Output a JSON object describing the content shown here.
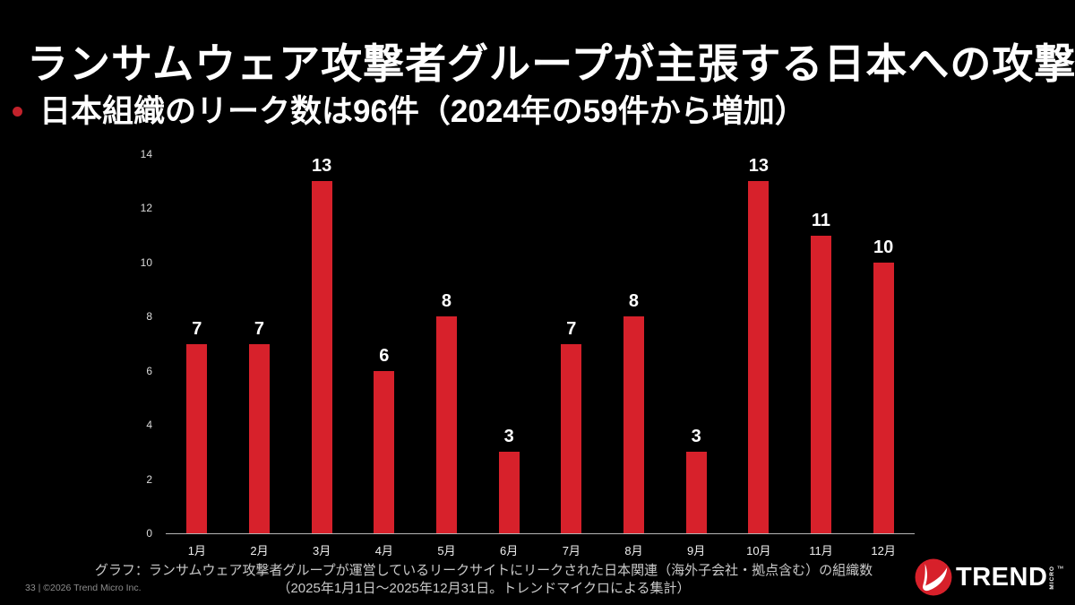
{
  "title": "ランサムウェア攻撃者グループが主張する日本への攻撃",
  "bullet": "日本組織のリーク数は96件（2024年の59件から増加）",
  "caption": {
    "line1": "グラフ：ランサムウェア攻撃者グループが運営しているリークサイトにリークされた日本関連（海外子会社・拠点含む）の組織数",
    "line2": "（2025年1月1日～2025年12月31日。トレンドマイクロによる集計）"
  },
  "footer": "33 | ©2026 Trend Micro Inc.",
  "logo": {
    "trend": "TREND",
    "micro": "MICRO",
    "tm": "™"
  },
  "colors": {
    "background": "#000000",
    "bar_red": "#d7212b",
    "bullet_red": "#c2222b",
    "text": "#ffffff",
    "caption_gray": "#c9c9c9"
  },
  "chart_data": {
    "type": "bar",
    "title": "ランサムウェア攻撃者グループが主張する日本への攻撃",
    "categories": [
      "1月",
      "2月",
      "3月",
      "4月",
      "5月",
      "6月",
      "7月",
      "8月",
      "9月",
      "10月",
      "11月",
      "12月"
    ],
    "values": [
      7,
      7,
      13,
      6,
      8,
      3,
      7,
      8,
      3,
      13,
      11,
      10
    ],
    "xlabel": "",
    "ylabel": "",
    "ylim": [
      0,
      14
    ],
    "yticks": [
      0,
      2,
      4,
      6,
      8,
      10,
      12,
      14
    ],
    "bar_color": "#d7212b",
    "grid": false,
    "legend": "none",
    "data_labels": true
  }
}
